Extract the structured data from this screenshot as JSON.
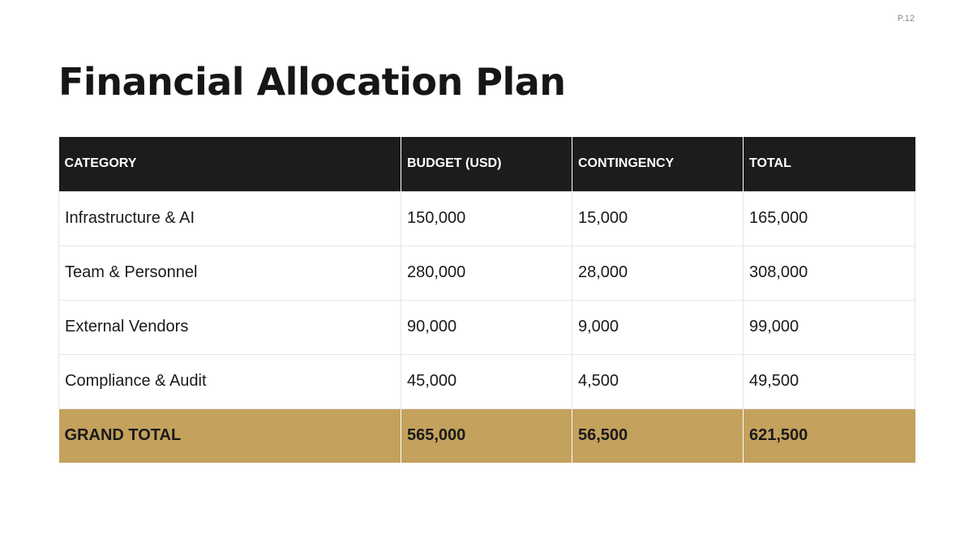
{
  "page": {
    "number": "P.12",
    "title": "Financial Allocation Plan"
  },
  "table": {
    "headers": [
      "CATEGORY",
      "BUDGET (USD)",
      "CONTINGENCY",
      "TOTAL"
    ],
    "rows": [
      [
        "Infrastructure & AI",
        "150,000",
        "15,000",
        "165,000"
      ],
      [
        "Team & Personnel",
        "280,000",
        "28,000",
        "308,000"
      ],
      [
        "External Vendors",
        "90,000",
        "9,000",
        "99,000"
      ],
      [
        "Compliance & Audit",
        "45,000",
        "4,500",
        "49,500"
      ]
    ],
    "total": [
      "GRAND TOTAL",
      "565,000",
      "56,500",
      "621,500"
    ]
  },
  "colors": {
    "header_bg": "#1c1c1c",
    "total_bg": "#c4a15c",
    "text": "#1a1a1a"
  }
}
